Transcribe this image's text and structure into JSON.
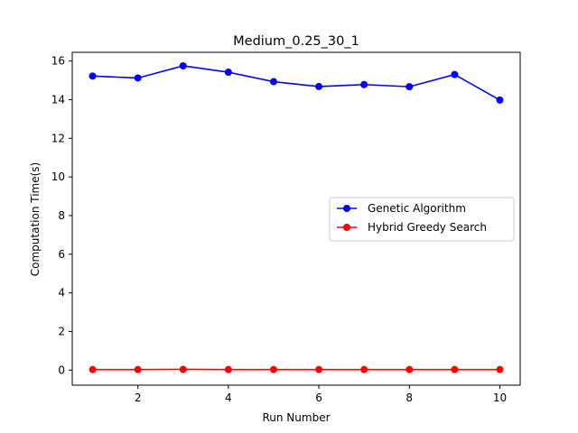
{
  "chart_data": {
    "type": "line",
    "title": "Medium_0.25_30_1",
    "xlabel": "Run Number",
    "ylabel": "Computation Time(s)",
    "x": [
      1,
      2,
      3,
      4,
      5,
      6,
      7,
      8,
      9,
      10
    ],
    "xlim": [
      0.55,
      10.45
    ],
    "ylim": [
      -0.78,
      16.45
    ],
    "xticks": [
      2,
      4,
      6,
      8,
      10
    ],
    "yticks": [
      0,
      2,
      4,
      6,
      8,
      10,
      12,
      14,
      16
    ],
    "grid": false,
    "legend_position": "center-right",
    "series": [
      {
        "name": "Genetic Algorithm",
        "color": "#0000ff",
        "marker": "circle",
        "values": [
          15.22,
          15.12,
          15.75,
          15.42,
          14.93,
          14.68,
          14.78,
          14.67,
          15.3,
          13.98
        ]
      },
      {
        "name": "Hybrid Greedy Search",
        "color": "#ff0000",
        "marker": "circle",
        "values": [
          0.03,
          0.03,
          0.04,
          0.03,
          0.03,
          0.03,
          0.03,
          0.03,
          0.03,
          0.03
        ]
      }
    ]
  }
}
